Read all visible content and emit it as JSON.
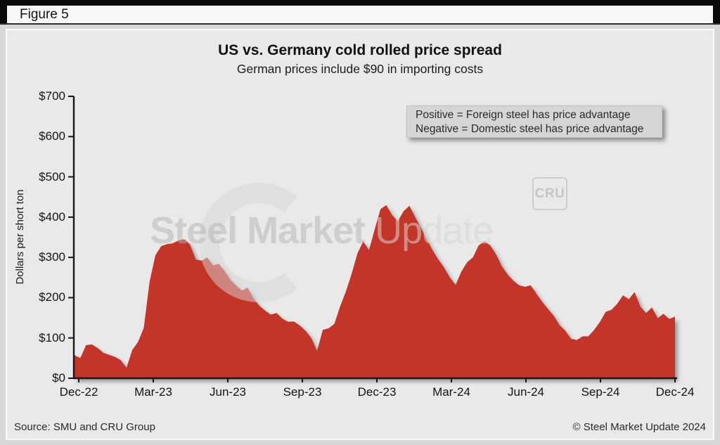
{
  "figure_label": "Figure 5",
  "title": "US vs. Germany cold rolled price spread",
  "subtitle": "German prices include $90 in importing costs",
  "annotation": {
    "line1": "Positive = Foreign steel has price advantage",
    "line2": "Negative = Domestic steel has price advantage"
  },
  "watermark": {
    "bold_text": "Steel Market",
    "light_text": " Update",
    "badge": "CRU"
  },
  "footer": {
    "source": "Source: SMU and CRU Group",
    "copyright": "© Steel Market Update 2024"
  },
  "chart_data": {
    "type": "area",
    "title": "US vs. Germany cold rolled price spread",
    "subtitle": "German prices include $90 in importing costs",
    "ylabel": "Dollars per short ton",
    "ylim": [
      0,
      700
    ],
    "y_ticks": [
      "$0",
      "$100",
      "$200",
      "$300",
      "$400",
      "$500",
      "$600",
      "$700"
    ],
    "x_ticks": [
      "Dec-22",
      "Mar-23",
      "Jun-23",
      "Sep-23",
      "Dec-23",
      "Mar-24",
      "Jun-24",
      "Sep-24",
      "Dec-24"
    ],
    "grid": false,
    "legend_position": "none",
    "fill_color": "#c43529",
    "frequency": "weekly",
    "values": [
      57,
      50,
      82,
      84,
      75,
      63,
      58,
      53,
      45,
      26,
      70,
      90,
      125,
      240,
      305,
      328,
      333,
      335,
      342,
      345,
      332,
      295,
      292,
      300,
      280,
      284,
      266,
      244,
      230,
      218,
      225,
      198,
      180,
      168,
      158,
      162,
      148,
      140,
      141,
      131,
      118,
      100,
      68,
      120,
      124,
      135,
      178,
      215,
      260,
      310,
      340,
      318,
      370,
      420,
      430,
      405,
      390,
      415,
      428,
      400,
      373,
      345,
      318,
      295,
      275,
      250,
      232,
      265,
      288,
      300,
      330,
      340,
      330,
      308,
      278,
      258,
      242,
      231,
      227,
      231,
      210,
      190,
      172,
      155,
      132,
      118,
      98,
      95,
      104,
      104,
      120,
      140,
      165,
      170,
      185,
      206,
      196,
      214,
      178,
      162,
      176,
      149,
      160,
      147,
      153
    ]
  }
}
